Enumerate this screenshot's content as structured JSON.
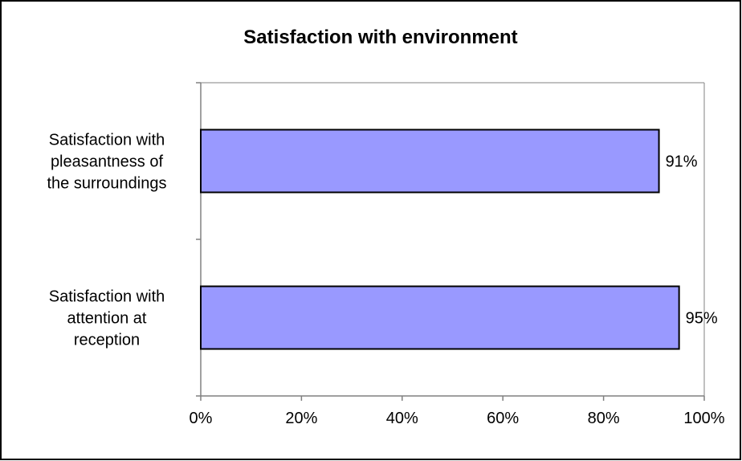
{
  "chart_data": {
    "type": "bar",
    "orientation": "horizontal",
    "title": "Satisfaction with environment",
    "xlabel": "",
    "ylabel": "",
    "categories": [
      [
        "Satisfaction with",
        "pleasantness of",
        "the surroundings"
      ],
      [
        "Satisfaction with",
        "attention at",
        "reception"
      ]
    ],
    "values": [
      0.91,
      0.95
    ],
    "data_labels": [
      "91%",
      "95%"
    ],
    "xlim": [
      0,
      1
    ],
    "x_ticks": [
      0,
      0.2,
      0.4,
      0.6,
      0.8,
      1
    ],
    "x_tick_labels": [
      "0%",
      "20%",
      "40%",
      "60%",
      "80%",
      "100%"
    ],
    "grid": false,
    "legend": "none",
    "colors": {
      "bar_fill": "#9999ff",
      "bar_stroke": "#000000",
      "axis": "#808080",
      "frame": "#000000"
    }
  }
}
